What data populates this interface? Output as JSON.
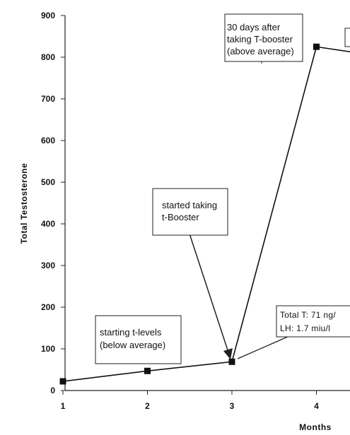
{
  "chart_data": {
    "type": "line",
    "title": "",
    "xlabel": "Months",
    "ylabel": "Total Testosterone",
    "x": [
      1,
      2,
      3,
      4,
      5
    ],
    "y": [
      22,
      47,
      69,
      825,
      795
    ],
    "xticks": [
      1,
      2,
      3,
      4
    ],
    "yticks": [
      0,
      100,
      200,
      300,
      400,
      500,
      600,
      700,
      800,
      900
    ],
    "xlim": [
      0.9,
      5
    ],
    "ylim": [
      0,
      900
    ],
    "grid": false,
    "annotations": [
      {
        "lines": [
          "starting t-levels",
          "(below average)"
        ]
      },
      {
        "lines": [
          "started taking",
          "t-Booster"
        ]
      },
      {
        "lines": [
          "30 days after",
          "taking T-booster",
          "(above average)"
        ]
      },
      {
        "lines": [
          "Total T: 71 ng/",
          "LH: 1.7 miu/l"
        ]
      }
    ]
  }
}
